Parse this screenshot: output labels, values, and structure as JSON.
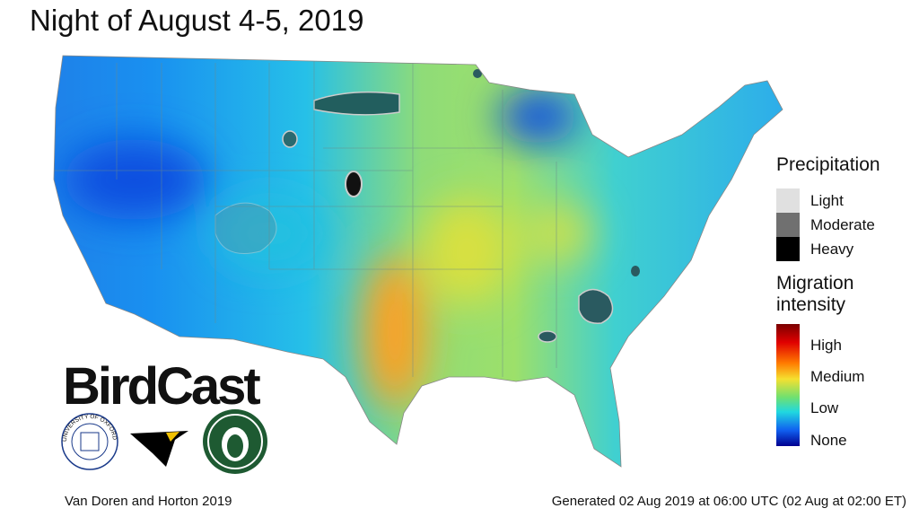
{
  "title": "Night of August 4-5, 2019",
  "legend": {
    "precipitation": {
      "title": "Precipitation",
      "items": [
        "Light",
        "Moderate",
        "Heavy"
      ]
    },
    "migration": {
      "title_lines": [
        "Migration",
        "intensity"
      ],
      "items": [
        "High",
        "Medium",
        "Low",
        "None"
      ]
    }
  },
  "logo": {
    "name": "BirdCast",
    "seal": "UNIVERSITY OF OXFORD"
  },
  "footer": {
    "credit": "Van Doren and Horton 2019",
    "generated": "Generated 02 Aug 2019 at 06:00 UTC (02 Aug at 02:00 ET)"
  }
}
